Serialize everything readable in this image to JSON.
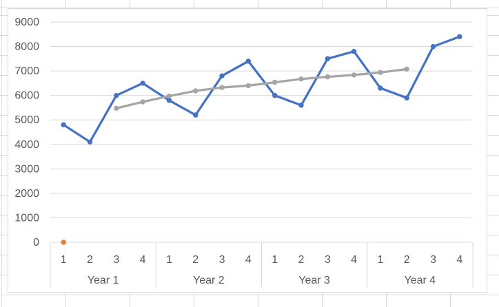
{
  "chart_data": {
    "type": "line",
    "title": "",
    "xlabel": "",
    "ylabel": "",
    "legend": "none",
    "grid": "horizontal",
    "y_axis": {
      "min": 0,
      "max": 9000,
      "step": 1000,
      "tick_labels": [
        "9000",
        "8000",
        "7000",
        "6000",
        "5000",
        "4000",
        "3000",
        "2000",
        "1000",
        "0"
      ]
    },
    "x_axis": {
      "quarter_labels": [
        "1",
        "2",
        "3",
        "4",
        "1",
        "2",
        "3",
        "4",
        "1",
        "2",
        "3",
        "4",
        "1",
        "2",
        "3",
        "4"
      ],
      "year_group_labels": [
        "Year 1",
        "Year 2",
        "Year 3",
        "Year 4"
      ]
    },
    "series": [
      {
        "id": "quarterly-values",
        "color": "#4472C4",
        "marker": "circle",
        "start_category": 1,
        "values": [
          4800,
          4100,
          6000,
          6500,
          5800,
          5200,
          6800,
          7400,
          6000,
          5600,
          7500,
          7800,
          6300,
          5900,
          8000,
          8400
        ]
      },
      {
        "id": "centered-moving-average",
        "color": "#A5A5A5",
        "marker": "circle",
        "start_category": 3,
        "values": [
          5475,
          5737.5,
          5975,
          6187.5,
          6325,
          6400,
          6537.5,
          6675,
          6762.5,
          6837.5,
          6937.5,
          7075
        ]
      },
      {
        "id": "orange-single-point",
        "color": "#ED7D31",
        "marker": "circle",
        "start_category": 1,
        "values": [
          0
        ]
      }
    ],
    "colors": {
      "gridline": "#D9D9D9",
      "axis_line": "#D9D9D9",
      "axis_text": "#595959",
      "chart_border": "#D9D9D9",
      "sheet_gridline": "#D9D9D9"
    }
  }
}
